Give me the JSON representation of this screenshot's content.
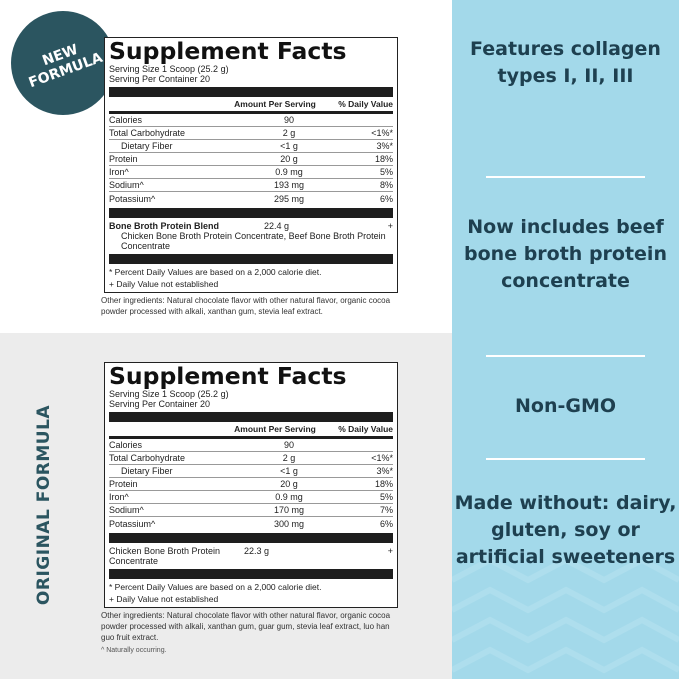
{
  "badge": {
    "new_formula": "NEW FORMULA"
  },
  "side_label": "ORIGINAL FORMULA",
  "new_facts": {
    "title": "Supplement Facts",
    "serving_size": "Serving Size 1 Scoop (25.2 g)",
    "servings": "Serving Per Container 20",
    "headers": [
      "",
      "Amount Per Serving",
      "% Daily Value"
    ],
    "rows": [
      {
        "name": "Calories",
        "amount": "90",
        "dv": ""
      },
      {
        "name": "Total Carbohydrate",
        "amount": "2 g",
        "dv": "<1%*"
      },
      {
        "name": "Dietary Fiber",
        "amount": "<1 g",
        "dv": "3%*"
      },
      {
        "name": "Protein",
        "amount": "20 g",
        "dv": "18%"
      },
      {
        "name": "Iron^",
        "amount": "0.9 mg",
        "dv": "5%"
      },
      {
        "name": "Sodium^",
        "amount": "193 mg",
        "dv": "8%"
      },
      {
        "name": "Potassium^",
        "amount": "295 mg",
        "dv": "6%"
      }
    ],
    "blend": {
      "name": "Bone Broth Protein Blend",
      "amount": "22.4 g",
      "dv": "+",
      "detail": "Chicken Bone Broth Protein Concentrate, Beef Bone Broth Protein Concentrate"
    },
    "footnote1": "* Percent Daily Values are based on a 2,000 calorie diet.",
    "footnote2": "+ Daily Value not established",
    "other": "Other ingredients: Natural chocolate flavor with other natural flavor, organic cocoa powder processed with alkali, xanthan gum, stevia leaf extract."
  },
  "old_facts": {
    "title": "Supplement Facts",
    "serving_size": "Serving Size 1 Scoop (25.2 g)",
    "servings": "Serving Per Container 20",
    "headers": [
      "",
      "Amount Per Serving",
      "% Daily Value"
    ],
    "rows": [
      {
        "name": "Calories",
        "amount": "90",
        "dv": ""
      },
      {
        "name": "Total Carbohydrate",
        "amount": "2 g",
        "dv": "<1%*"
      },
      {
        "name": "Dietary Fiber",
        "amount": "<1 g",
        "dv": "3%*"
      },
      {
        "name": "Protein",
        "amount": "20 g",
        "dv": "18%"
      },
      {
        "name": "Iron^",
        "amount": "0.9 mg",
        "dv": "5%"
      },
      {
        "name": "Sodium^",
        "amount": "170 mg",
        "dv": "7%"
      },
      {
        "name": "Potassium^",
        "amount": "300 mg",
        "dv": "6%"
      }
    ],
    "blend": {
      "name": "Chicken Bone Broth Protein Concentrate",
      "amount": "22.3 g",
      "dv": "+"
    },
    "footnote1": "* Percent Daily Values are based on a 2,000 calorie diet.",
    "footnote2": "+ Daily Value not established",
    "other": "Other ingredients: Natural chocolate flavor with other natural flavor, organic cocoa powder processed with alkali, xanthan gum, guar gum, stevia leaf extract, luo han guo fruit extract.",
    "naturally": "^ Naturally occurring."
  },
  "features": [
    "Features collagen types I, II, III",
    "Now includes beef bone broth protein concentrate",
    "Non-GMO",
    "Made without: dairy, gluten, soy or artificial sweeteners"
  ],
  "colors": {
    "teal": "#2b5560",
    "blue_panel": "#a3d9ea",
    "feature_text": "#1e4050"
  }
}
